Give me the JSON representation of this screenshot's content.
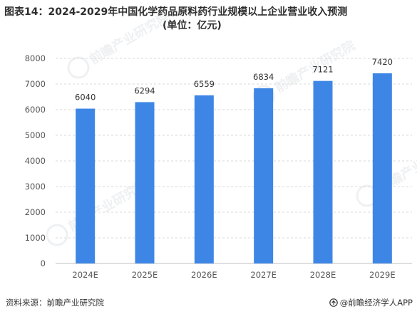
{
  "header": {
    "title_line1": "图表14：2024-2029年中国化学药品原料药行业规模以上企业营业收入预测",
    "title_line2": "(单位：亿元)"
  },
  "footer": {
    "source": "资料来源：前瞻产业研究院",
    "brand": "@前瞻经济学人APP"
  },
  "colors": {
    "bar": "#3d86e6",
    "grid": "#d9d9d9",
    "axis_text": "#555555",
    "watermark": "#9aa6b2"
  },
  "icons": {
    "brand_logo": "qianzhan-logo-icon",
    "watermark_logo": "qianzhan-watermark-logo-icon"
  },
  "watermarks": [
    {
      "text": "前瞻产业研究院"
    },
    {
      "text": "前瞻产业研究院"
    },
    {
      "text": "前瞻产业研究院"
    },
    {
      "text": "前瞻产业研究院"
    }
  ],
  "chart_data": {
    "type": "bar",
    "categories": [
      "2024E",
      "2025E",
      "2026E",
      "2027E",
      "2028E",
      "2029E"
    ],
    "values": [
      6040,
      6294,
      6559,
      6834,
      7121,
      7420
    ],
    "data_labels": [
      "6040",
      "6294",
      "6559",
      "6834",
      "7121",
      "7420"
    ],
    "ylim": [
      0,
      8000
    ],
    "yticks": [
      0,
      1000,
      2000,
      3000,
      4000,
      5000,
      6000,
      7000,
      8000
    ],
    "ytick_labels": [
      "0",
      "1000",
      "2000",
      "3000",
      "4000",
      "5000",
      "6000",
      "7000",
      "8000"
    ],
    "xlabel": "",
    "ylabel": "",
    "grid": true,
    "legend": "none"
  }
}
